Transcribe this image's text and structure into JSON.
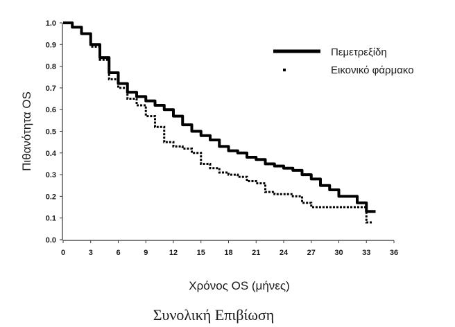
{
  "chart_data": {
    "type": "line",
    "caption": "Συνολική Επιβίωση",
    "xlabel": "Χρόνος OS (μήνες)",
    "ylabel": "Πιθανότητα OS",
    "xlim": [
      0,
      36
    ],
    "ylim": [
      0,
      1.0
    ],
    "xticks": [
      0,
      3,
      6,
      9,
      12,
      15,
      18,
      21,
      24,
      27,
      30,
      33,
      36
    ],
    "yticks": [
      "0.0",
      "0.1",
      "0.2",
      "0.3",
      "0.4",
      "0.5",
      "0.6",
      "0.7",
      "0.8",
      "0.9",
      "1.0"
    ],
    "grid": false,
    "legend_position": "top-right",
    "series": [
      {
        "name": "Πεμετρεξίδη",
        "style": "solid",
        "color": "#000000",
        "x": [
          0,
          1,
          2,
          3,
          4,
          5,
          6,
          7,
          8,
          9,
          10,
          11,
          12,
          13,
          14,
          15,
          16,
          17,
          18,
          19,
          20,
          21,
          22,
          23,
          24,
          25,
          26,
          27,
          28,
          29,
          30,
          31,
          32,
          33,
          34
        ],
        "y": [
          1.0,
          0.98,
          0.95,
          0.9,
          0.84,
          0.77,
          0.72,
          0.68,
          0.66,
          0.64,
          0.62,
          0.6,
          0.57,
          0.53,
          0.5,
          0.48,
          0.46,
          0.43,
          0.41,
          0.4,
          0.38,
          0.37,
          0.35,
          0.34,
          0.33,
          0.32,
          0.3,
          0.28,
          0.25,
          0.23,
          0.2,
          0.2,
          0.17,
          0.13,
          0.13
        ]
      },
      {
        "name": "Εικονικό φάρμακο",
        "style": "dotted",
        "color": "#000000",
        "x": [
          0,
          1,
          2,
          3,
          4,
          5,
          6,
          7,
          8,
          9,
          10,
          11,
          12,
          13,
          14,
          15,
          16,
          17,
          18,
          19,
          20,
          21,
          22,
          23,
          24,
          25,
          26,
          27,
          28,
          29,
          30,
          31,
          32,
          33,
          33.6
        ],
        "y": [
          1.0,
          0.98,
          0.95,
          0.89,
          0.83,
          0.74,
          0.7,
          0.65,
          0.62,
          0.57,
          0.52,
          0.45,
          0.43,
          0.42,
          0.4,
          0.35,
          0.33,
          0.31,
          0.3,
          0.29,
          0.27,
          0.26,
          0.22,
          0.21,
          0.21,
          0.2,
          0.17,
          0.15,
          0.15,
          0.15,
          0.15,
          0.15,
          0.15,
          0.08,
          0.08
        ]
      }
    ]
  }
}
